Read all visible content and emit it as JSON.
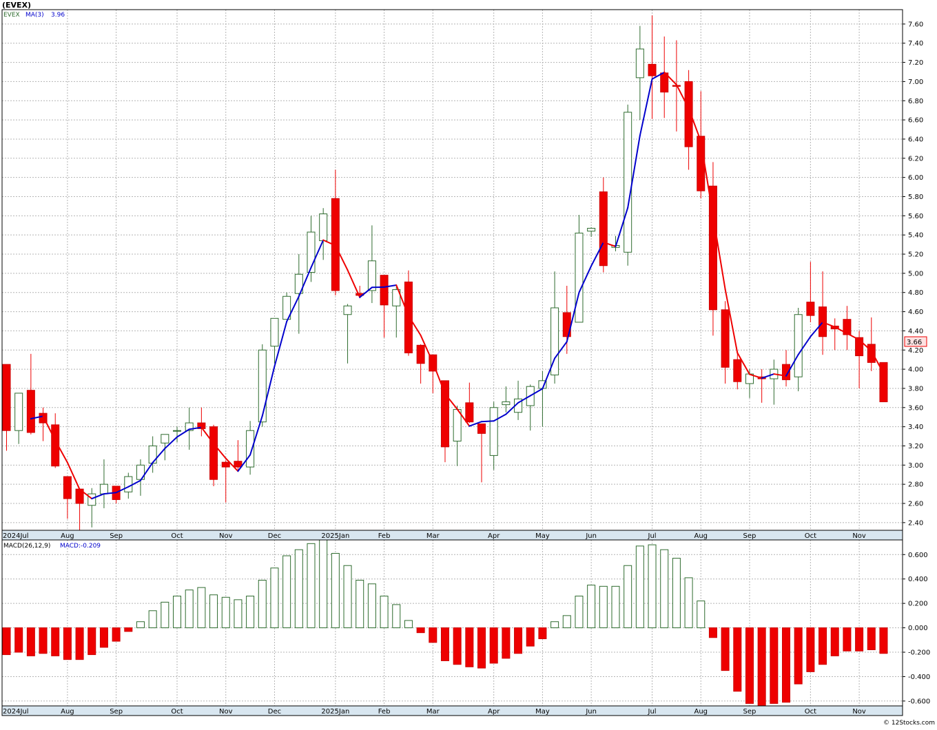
{
  "title": "(EVEX)",
  "price_legend": {
    "symbol": "EVEX",
    "ma_label": "MA(3)",
    "ma_value": "3.96"
  },
  "macd_legend": {
    "label": "MACD(26,12,9)",
    "value": "MACD:-0.209"
  },
  "last_price_label": "3.66",
  "watermark": "© 12Stocks.com",
  "colors": {
    "up_candle": "#2e6b2e",
    "down_candle": "#ee0000",
    "ma_up": "#0000cc",
    "ma_down": "#ee0000",
    "grid": "#b4b4b4",
    "axis_strip": "#d8e6f0"
  },
  "chart_data": [
    {
      "type": "candlestick",
      "symbol": "EVEX",
      "timeframe": "weekly",
      "ylim": [
        2.32,
        7.75
      ],
      "yticks": [
        2.4,
        2.6,
        2.8,
        3.0,
        3.2,
        3.4,
        3.6,
        3.8,
        4.0,
        4.2,
        4.4,
        4.6,
        4.8,
        5.0,
        5.2,
        5.4,
        5.6,
        5.8,
        6.0,
        6.2,
        6.4,
        6.6,
        6.8,
        7.0,
        7.2,
        7.4,
        7.6
      ],
      "ytick_labels": [
        "2.40",
        "2.60",
        "2.80",
        "3.00",
        "3.20",
        "3.40",
        "3.60",
        "3.80",
        "4.00",
        "4.20",
        "4.40",
        "4.60",
        "4.80",
        "5.00",
        "5.20",
        "5.40",
        "5.60",
        "5.80",
        "6.00",
        "6.20",
        "6.40",
        "6.60",
        "6.80",
        "7.00",
        "7.20",
        "7.40",
        "7.60"
      ],
      "month_labels": [
        {
          "label": "2024Jul",
          "week": -0.5
        },
        {
          "label": "Aug",
          "week": 5
        },
        {
          "label": "Sep",
          "week": 9
        },
        {
          "label": "Oct",
          "week": 14
        },
        {
          "label": "Nov",
          "week": 18
        },
        {
          "label": "Dec",
          "week": 22
        },
        {
          "label": "2025Jan",
          "week": 27
        },
        {
          "label": "Feb",
          "week": 31
        },
        {
          "label": "Mar",
          "week": 35
        },
        {
          "label": "Apr",
          "week": 40
        },
        {
          "label": "May",
          "week": 44
        },
        {
          "label": "Jun",
          "week": 48
        },
        {
          "label": "Jul",
          "week": 53
        },
        {
          "label": "Aug",
          "week": 57
        },
        {
          "label": "Sep",
          "week": 61
        },
        {
          "label": "Oct",
          "week": 66
        },
        {
          "label": "Nov",
          "week": 70
        }
      ],
      "candles": [
        {
          "o": 4.05,
          "h": 4.05,
          "l": 3.15,
          "c": 3.36
        },
        {
          "o": 3.36,
          "h": 3.75,
          "l": 3.22,
          "c": 3.75
        },
        {
          "o": 3.78,
          "h": 4.16,
          "l": 3.32,
          "c": 3.34
        },
        {
          "o": 3.54,
          "h": 3.6,
          "l": 3.25,
          "c": 3.44
        },
        {
          "o": 3.42,
          "h": 3.54,
          "l": 2.97,
          "c": 2.99
        },
        {
          "o": 2.88,
          "h": 2.88,
          "l": 2.44,
          "c": 2.65
        },
        {
          "o": 2.75,
          "h": 2.75,
          "l": 2.32,
          "c": 2.6
        },
        {
          "o": 2.58,
          "h": 2.76,
          "l": 2.35,
          "c": 2.7
        },
        {
          "o": 2.7,
          "h": 3.06,
          "l": 2.55,
          "c": 2.8
        },
        {
          "o": 2.78,
          "h": 2.78,
          "l": 2.6,
          "c": 2.64
        },
        {
          "o": 2.72,
          "h": 2.92,
          "l": 2.65,
          "c": 2.88
        },
        {
          "o": 2.85,
          "h": 3.06,
          "l": 2.68,
          "c": 3.0
        },
        {
          "o": 3.02,
          "h": 3.3,
          "l": 2.92,
          "c": 3.2
        },
        {
          "o": 3.23,
          "h": 3.32,
          "l": 3.05,
          "c": 3.32
        },
        {
          "o": 3.36,
          "h": 3.4,
          "l": 3.24,
          "c": 3.36
        },
        {
          "o": 3.36,
          "h": 3.6,
          "l": 3.16,
          "c": 3.44
        },
        {
          "o": 3.44,
          "h": 3.6,
          "l": 3.3,
          "c": 3.38
        },
        {
          "o": 3.4,
          "h": 3.42,
          "l": 2.78,
          "c": 2.85
        },
        {
          "o": 3.03,
          "h": 3.05,
          "l": 2.61,
          "c": 2.98
        },
        {
          "o": 3.04,
          "h": 3.26,
          "l": 2.95,
          "c": 2.98
        },
        {
          "o": 2.98,
          "h": 3.46,
          "l": 2.9,
          "c": 3.36
        },
        {
          "o": 3.45,
          "h": 4.26,
          "l": 3.4,
          "c": 4.2
        },
        {
          "o": 4.24,
          "h": 4.52,
          "l": 4.06,
          "c": 4.53
        },
        {
          "o": 4.52,
          "h": 4.8,
          "l": 4.52,
          "c": 4.76
        },
        {
          "o": 4.79,
          "h": 5.2,
          "l": 4.37,
          "c": 4.99
        },
        {
          "o": 5.01,
          "h": 5.6,
          "l": 4.91,
          "c": 5.43
        },
        {
          "o": 5.34,
          "h": 5.68,
          "l": 5.14,
          "c": 5.62
        },
        {
          "o": 5.78,
          "h": 6.08,
          "l": 4.77,
          "c": 4.82
        },
        {
          "o": 4.57,
          "h": 4.68,
          "l": 4.06,
          "c": 4.66
        },
        {
          "o": 4.79,
          "h": 4.87,
          "l": 4.74,
          "c": 4.77
        },
        {
          "o": 4.82,
          "h": 5.5,
          "l": 4.69,
          "c": 5.13
        },
        {
          "o": 4.98,
          "h": 4.98,
          "l": 4.33,
          "c": 4.67
        },
        {
          "o": 4.66,
          "h": 4.86,
          "l": 4.33,
          "c": 4.83
        },
        {
          "o": 4.91,
          "h": 5.03,
          "l": 4.14,
          "c": 4.17
        },
        {
          "o": 4.25,
          "h": 4.26,
          "l": 3.85,
          "c": 4.06
        },
        {
          "o": 4.15,
          "h": 4.15,
          "l": 3.75,
          "c": 3.98
        },
        {
          "o": 3.88,
          "h": 3.88,
          "l": 3.03,
          "c": 3.19
        },
        {
          "o": 3.25,
          "h": 3.62,
          "l": 2.99,
          "c": 3.58
        },
        {
          "o": 3.65,
          "h": 3.86,
          "l": 3.44,
          "c": 3.45
        },
        {
          "o": 3.43,
          "h": 3.43,
          "l": 2.82,
          "c": 3.33
        },
        {
          "o": 3.1,
          "h": 3.66,
          "l": 2.95,
          "c": 3.6
        },
        {
          "o": 3.63,
          "h": 3.82,
          "l": 3.55,
          "c": 3.66
        },
        {
          "o": 3.55,
          "h": 3.88,
          "l": 3.47,
          "c": 3.69
        },
        {
          "o": 3.62,
          "h": 3.84,
          "l": 3.36,
          "c": 3.82
        },
        {
          "o": 3.8,
          "h": 3.98,
          "l": 3.4,
          "c": 3.88
        },
        {
          "o": 3.94,
          "h": 5.02,
          "l": 3.85,
          "c": 4.64
        },
        {
          "o": 4.59,
          "h": 4.87,
          "l": 4.16,
          "c": 4.34
        },
        {
          "o": 4.49,
          "h": 5.61,
          "l": 4.49,
          "c": 5.42
        },
        {
          "o": 5.44,
          "h": 5.48,
          "l": 5.38,
          "c": 5.47
        },
        {
          "o": 5.85,
          "h": 6.0,
          "l": 5.01,
          "c": 5.08
        },
        {
          "o": 5.27,
          "h": 5.39,
          "l": 5.23,
          "c": 5.29
        },
        {
          "o": 5.22,
          "h": 6.76,
          "l": 5.08,
          "c": 6.68
        },
        {
          "o": 7.04,
          "h": 7.58,
          "l": 6.6,
          "c": 7.34
        },
        {
          "o": 7.18,
          "h": 7.69,
          "l": 6.61,
          "c": 7.06
        },
        {
          "o": 7.09,
          "h": 7.47,
          "l": 6.62,
          "c": 6.89
        },
        {
          "o": 6.96,
          "h": 7.43,
          "l": 6.48,
          "c": 6.95
        },
        {
          "o": 7.0,
          "h": 7.12,
          "l": 6.08,
          "c": 6.32
        },
        {
          "o": 6.43,
          "h": 6.9,
          "l": 5.78,
          "c": 5.86
        },
        {
          "o": 5.91,
          "h": 6.16,
          "l": 4.35,
          "c": 4.62
        },
        {
          "o": 4.62,
          "h": 4.71,
          "l": 3.85,
          "c": 4.02
        },
        {
          "o": 4.1,
          "h": 4.19,
          "l": 3.79,
          "c": 3.87
        },
        {
          "o": 3.85,
          "h": 4.0,
          "l": 3.7,
          "c": 3.95
        },
        {
          "o": 3.92,
          "h": 4.0,
          "l": 3.65,
          "c": 3.9
        },
        {
          "o": 3.9,
          "h": 4.1,
          "l": 3.63,
          "c": 4.0
        },
        {
          "o": 4.05,
          "h": 4.2,
          "l": 3.82,
          "c": 3.89
        },
        {
          "o": 3.92,
          "h": 4.64,
          "l": 3.77,
          "c": 4.57
        },
        {
          "o": 4.7,
          "h": 5.12,
          "l": 4.49,
          "c": 4.56
        },
        {
          "o": 4.65,
          "h": 5.02,
          "l": 4.15,
          "c": 4.34
        },
        {
          "o": 4.45,
          "h": 4.53,
          "l": 4.2,
          "c": 4.42
        },
        {
          "o": 4.52,
          "h": 4.66,
          "l": 4.2,
          "c": 4.36
        },
        {
          "o": 4.33,
          "h": 4.4,
          "l": 3.8,
          "c": 4.14
        },
        {
          "o": 4.26,
          "h": 4.54,
          "l": 3.98,
          "c": 4.07
        },
        {
          "o": 4.07,
          "h": 4.07,
          "l": 3.66,
          "c": 3.66
        }
      ]
    },
    {
      "type": "bar",
      "name": "MACD(26,12,9)",
      "ylim": [
        -0.64,
        0.72
      ],
      "yticks": [
        -0.6,
        -0.4,
        -0.2,
        0.0,
        0.2,
        0.4,
        0.6
      ],
      "ytick_labels": [
        "-0.600",
        "-0.400",
        "-0.200",
        "0.000",
        "0.200",
        "0.400",
        "0.600"
      ],
      "values": [
        -0.22,
        -0.2,
        -0.23,
        -0.21,
        -0.23,
        -0.26,
        -0.26,
        -0.22,
        -0.16,
        -0.11,
        -0.03,
        0.05,
        0.14,
        0.21,
        0.26,
        0.31,
        0.33,
        0.27,
        0.25,
        0.23,
        0.26,
        0.39,
        0.49,
        0.59,
        0.64,
        0.69,
        0.72,
        0.61,
        0.51,
        0.39,
        0.36,
        0.26,
        0.19,
        0.06,
        -0.04,
        -0.12,
        -0.27,
        -0.3,
        -0.32,
        -0.33,
        -0.29,
        -0.25,
        -0.21,
        -0.15,
        -0.09,
        0.05,
        0.1,
        0.26,
        0.35,
        0.34,
        0.34,
        0.51,
        0.67,
        0.68,
        0.64,
        0.57,
        0.41,
        0.22,
        -0.08,
        -0.35,
        -0.52,
        -0.62,
        -0.64,
        -0.62,
        -0.61,
        -0.46,
        -0.36,
        -0.3,
        -0.23,
        -0.19,
        -0.19,
        -0.18,
        -0.21
      ]
    }
  ]
}
